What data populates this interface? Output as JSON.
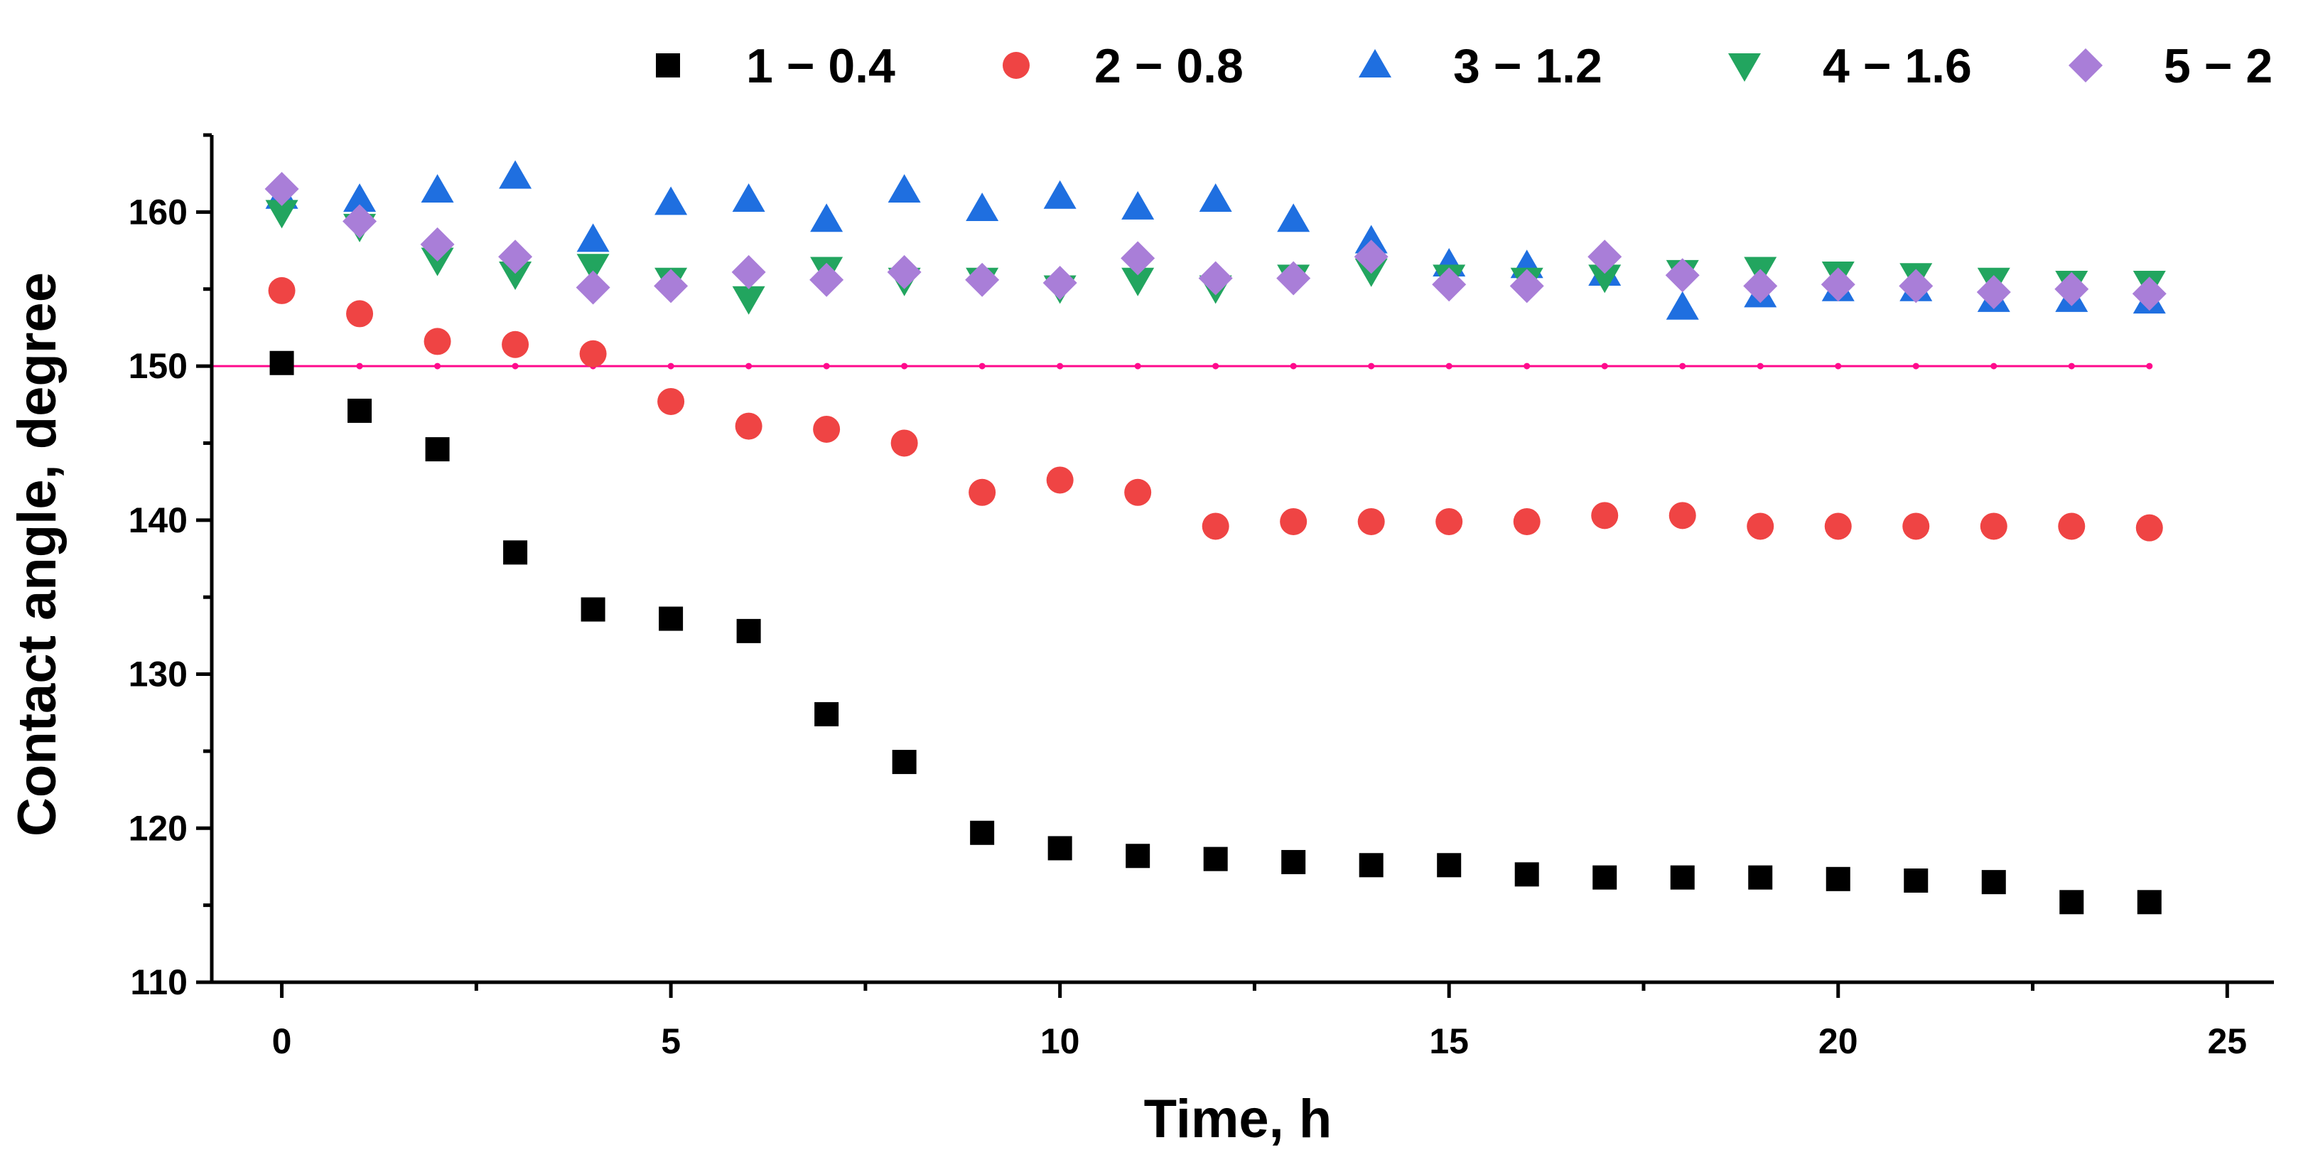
{
  "chart_data": {
    "type": "scatter",
    "title": "",
    "xlabel": "Time, h",
    "ylabel": "Contact angle, degree",
    "xlim": [
      -0.9,
      25.6
    ],
    "ylim": [
      110,
      165
    ],
    "xticks": [
      0,
      5,
      10,
      15,
      20,
      25
    ],
    "yticks": [
      110,
      120,
      130,
      140,
      150,
      160
    ],
    "x": [
      0,
      1,
      2,
      3,
      4,
      5,
      6,
      7,
      8,
      9,
      10,
      11,
      12,
      13,
      14,
      15,
      16,
      17,
      18,
      19,
      20,
      21,
      22,
      23,
      24
    ],
    "reference_line": {
      "y": 150,
      "color": "#ff0a8c"
    },
    "legend_position": "top",
    "series": [
      {
        "name": "1 − 0.4",
        "marker": "square",
        "color": "#000000",
        "values": [
          150.2,
          147.1,
          144.6,
          137.9,
          134.2,
          133.6,
          132.8,
          127.4,
          124.3,
          119.7,
          118.7,
          118.2,
          118.0,
          117.8,
          117.6,
          117.6,
          117.0,
          116.8,
          116.8,
          116.8,
          116.7,
          116.6,
          116.5,
          115.2,
          115.2
        ]
      },
      {
        "name": "2 − 0.8",
        "marker": "circle",
        "color": "#ef4444",
        "values": [
          154.9,
          153.4,
          151.6,
          151.4,
          150.8,
          147.7,
          146.1,
          145.9,
          145.0,
          141.8,
          142.6,
          141.8,
          139.6,
          139.9,
          139.9,
          139.9,
          139.9,
          140.3,
          140.3,
          139.6,
          139.6,
          139.6,
          139.6,
          139.6,
          139.5
        ]
      },
      {
        "name": "3 − 1.2",
        "marker": "triangle-up",
        "color": "#1f6fe0",
        "values": [
          161.0,
          160.8,
          161.4,
          162.3,
          158.2,
          160.6,
          160.8,
          159.5,
          161.4,
          160.2,
          161.0,
          160.3,
          160.8,
          159.5,
          158.1,
          156.6,
          156.5,
          156.0,
          153.8,
          154.6,
          155.0,
          155.0,
          154.3,
          154.3,
          154.2
        ]
      },
      {
        "name": "4 − 1.6",
        "marker": "triangle-down",
        "color": "#22a55f",
        "values": [
          160.0,
          159.1,
          156.9,
          156.0,
          156.5,
          155.6,
          154.4,
          156.3,
          155.6,
          155.6,
          155.1,
          155.6,
          155.1,
          155.8,
          156.2,
          155.8,
          155.6,
          155.8,
          156.1,
          156.3,
          156.0,
          155.9,
          155.6,
          155.4,
          155.4
        ]
      },
      {
        "name": "5 − 2",
        "marker": "diamond",
        "color": "#a97ed8",
        "values": [
          161.5,
          159.4,
          157.9,
          157.1,
          155.1,
          155.2,
          156.1,
          155.6,
          156.1,
          155.6,
          155.4,
          157.0,
          155.7,
          155.7,
          157.1,
          155.3,
          155.2,
          157.1,
          155.9,
          155.2,
          155.3,
          155.2,
          154.8,
          155.0,
          154.7
        ]
      }
    ]
  }
}
